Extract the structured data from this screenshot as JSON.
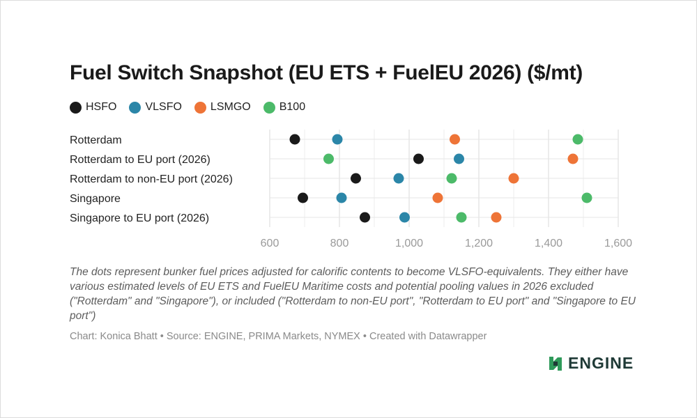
{
  "chart_data": {
    "type": "scatter",
    "title": "Fuel Switch Snapshot (EU ETS + FuelEU 2026) ($/mt)",
    "categories": [
      "Rotterdam",
      "Rotterdam to EU port (2026)",
      "Rotterdam to non-EU port (2026)",
      "Singapore",
      "Singapore to EU port (2026)"
    ],
    "series": [
      {
        "name": "HSFO",
        "color": "#1a1a1a",
        "values": [
          672,
          1027,
          847,
          695,
          873
        ]
      },
      {
        "name": "VLSFO",
        "color": "#2b86a8",
        "values": [
          794,
          1143,
          970,
          806,
          987
        ]
      },
      {
        "name": "LSMGO",
        "color": "#ee7437",
        "values": [
          1131,
          1470,
          1300,
          1082,
          1250
        ]
      },
      {
        "name": "B100",
        "color": "#4cba69",
        "values": [
          1484,
          769,
          1122,
          1510,
          1150
        ]
      }
    ],
    "xlim": [
      600,
      1600
    ],
    "xticks": [
      600,
      800,
      1000,
      1200,
      1400,
      1600
    ],
    "xtick_labels": [
      "600",
      "800",
      "1,000",
      "1,200",
      "1,400",
      "1,600"
    ],
    "grid": true,
    "legend_position": "top-left"
  },
  "notes": "The dots represent bunker fuel prices adjusted for calorific contents to become VLSFO-equivalents. They either have various estimated levels of EU ETS and FuelEU Maritime costs and potential pooling values in 2026 excluded (\"Rotterdam\" and \"Singapore\"), or included (\"Rotterdam to non-EU port\", \"Rotterdam to EU port\" and \"Singapore to EU port\")",
  "source": "Chart: Konica Bhatt • Source: ENGINE, PRIMA Markets, NYMEX • Created with Datawrapper",
  "logo": {
    "text": "ENGINE",
    "color": "#1f3a36",
    "icon": "engine-logo-icon"
  }
}
